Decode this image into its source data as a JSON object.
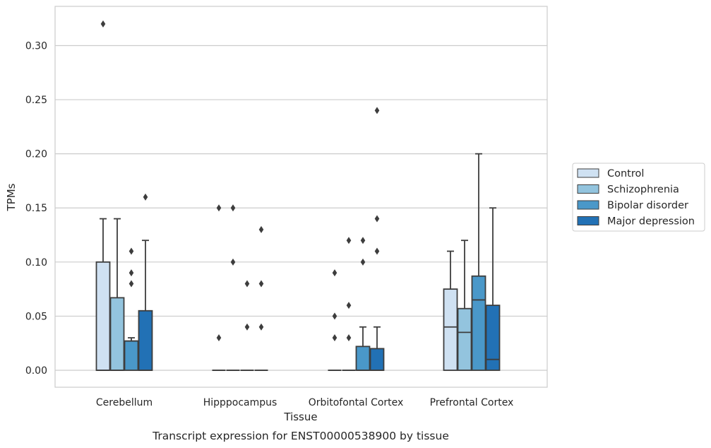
{
  "chart_data": {
    "type": "boxplot",
    "title": "",
    "caption": "Transcript expression for ENST00000538900 by tissue",
    "xlabel": "Tissue",
    "ylabel": "TPMs",
    "ylim": [
      -0.016,
      0.338
    ],
    "yticks": [
      0.0,
      0.05,
      0.1,
      0.15,
      0.2,
      0.25,
      0.3
    ],
    "ytick_labels": [
      "0.00",
      "0.05",
      "0.10",
      "0.15",
      "0.20",
      "0.25",
      "0.30"
    ],
    "grid": "horizontal",
    "legend_position": "right",
    "categories": [
      "Cerebellum",
      "Hipppocampus",
      "Orbitofontal Cortex",
      "Prefrontal Cortex"
    ],
    "series": [
      {
        "name": "Control",
        "color": "#cfe1f2",
        "boxes": [
          {
            "q1": 0.0,
            "median": 0.0,
            "q3": 0.1,
            "whisker_low": 0.0,
            "whisker_high": 0.14,
            "outliers": [
              0.32
            ]
          },
          {
            "q1": 0.0,
            "median": 0.0,
            "q3": 0.0,
            "whisker_low": 0.0,
            "whisker_high": 0.0,
            "outliers": [
              0.03,
              0.15
            ]
          },
          {
            "q1": 0.0,
            "median": 0.0,
            "q3": 0.0,
            "whisker_low": 0.0,
            "whisker_high": 0.0,
            "outliers": [
              0.03,
              0.05,
              0.09
            ]
          },
          {
            "q1": 0.0,
            "median": 0.04,
            "q3": 0.075,
            "whisker_low": 0.0,
            "whisker_high": 0.11,
            "outliers": []
          }
        ]
      },
      {
        "name": "Schizophrenia",
        "color": "#93c4de",
        "boxes": [
          {
            "q1": 0.0,
            "median": 0.0,
            "q3": 0.067,
            "whisker_low": 0.0,
            "whisker_high": 0.14,
            "outliers": []
          },
          {
            "q1": 0.0,
            "median": 0.0,
            "q3": 0.0,
            "whisker_low": 0.0,
            "whisker_high": 0.0,
            "outliers": [
              0.1,
              0.15
            ]
          },
          {
            "q1": 0.0,
            "median": 0.0,
            "q3": 0.0,
            "whisker_low": 0.0,
            "whisker_high": 0.0,
            "outliers": [
              0.03,
              0.06,
              0.12
            ]
          },
          {
            "q1": 0.0,
            "median": 0.035,
            "q3": 0.057,
            "whisker_low": 0.0,
            "whisker_high": 0.12,
            "outliers": []
          }
        ]
      },
      {
        "name": "Bipolar disorder",
        "color": "#4a98c9",
        "boxes": [
          {
            "q1": 0.0,
            "median": 0.027,
            "q3": 0.027,
            "whisker_low": 0.0,
            "whisker_high": 0.03,
            "outliers": [
              0.08,
              0.09,
              0.11
            ]
          },
          {
            "q1": 0.0,
            "median": 0.0,
            "q3": 0.0,
            "whisker_low": 0.0,
            "whisker_high": 0.0,
            "outliers": [
              0.04,
              0.08
            ]
          },
          {
            "q1": 0.0,
            "median": 0.0,
            "q3": 0.022,
            "whisker_low": 0.0,
            "whisker_high": 0.04,
            "outliers": [
              0.1,
              0.12
            ]
          },
          {
            "q1": 0.0,
            "median": 0.065,
            "q3": 0.087,
            "whisker_low": 0.0,
            "whisker_high": 0.2,
            "outliers": []
          }
        ]
      },
      {
        "name": "Major depression",
        "color": "#2271b5",
        "boxes": [
          {
            "q1": 0.0,
            "median": 0.0,
            "q3": 0.055,
            "whisker_low": 0.0,
            "whisker_high": 0.12,
            "outliers": [
              0.16
            ]
          },
          {
            "q1": 0.0,
            "median": 0.0,
            "q3": 0.0,
            "whisker_low": 0.0,
            "whisker_high": 0.0,
            "outliers": [
              0.04,
              0.08,
              0.13
            ]
          },
          {
            "q1": 0.0,
            "median": 0.0,
            "q3": 0.02,
            "whisker_low": 0.0,
            "whisker_high": 0.04,
            "outliers": [
              0.11,
              0.14,
              0.24
            ]
          },
          {
            "q1": 0.0,
            "median": 0.01,
            "q3": 0.06,
            "whisker_low": 0.0,
            "whisker_high": 0.15,
            "outliers": []
          }
        ]
      }
    ]
  }
}
